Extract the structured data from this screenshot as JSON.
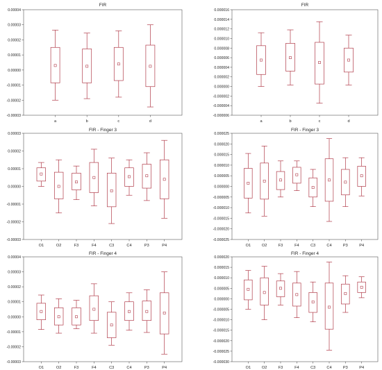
{
  "chart_data": [
    {
      "type": "box",
      "title": "FIR",
      "categories": [
        "a",
        "b",
        "c",
        "d"
      ],
      "ylim": [
        -3e-05,
        4e-05
      ],
      "yticks": [
        -3e-05,
        -2e-05,
        -1e-05,
        0.0,
        1e-05,
        2e-05,
        3e-05,
        4e-05
      ],
      "ytick_labels": [
        "-0.00003",
        "-0.00002",
        "-0.00001",
        "0.00000",
        "0.00001",
        "0.00002",
        "0.00003",
        "0.00004"
      ],
      "boxes": [
        {
          "median": 3e-06,
          "q1": -8.5e-06,
          "q3": 1.5e-05,
          "min": -2e-05,
          "max": 2.65e-05
        },
        {
          "median": 2.5e-06,
          "q1": -8.5e-06,
          "q3": 1.4e-05,
          "min": -1.9e-05,
          "max": 2.45e-05
        },
        {
          "median": 4e-06,
          "q1": -7e-06,
          "q3": 1.5e-05,
          "min": -1.8e-05,
          "max": 2.6e-05
        },
        {
          "median": 2.5e-06,
          "q1": -1.1e-05,
          "q3": 1.65e-05,
          "min": -2.45e-05,
          "max": 3e-05
        }
      ]
    },
    {
      "type": "box",
      "title": "FIR",
      "categories": [
        "a",
        "b",
        "c",
        "d"
      ],
      "ylim": [
        -6e-06,
        1.6e-05
      ],
      "yticks": [
        -6e-06,
        -4e-06,
        -2e-06,
        0.0,
        2e-06,
        4e-06,
        6e-06,
        8e-06,
        1e-05,
        1.2e-05,
        1.4e-05,
        1.6e-05
      ],
      "ytick_labels": [
        "-0.000006",
        "-0.000004",
        "-0.000002",
        "0.000000",
        "0.000002",
        "0.000004",
        "0.000006",
        "0.000008",
        "0.000010",
        "0.000012",
        "0.000014",
        "0.000016"
      ],
      "boxes": [
        {
          "median": 5.5e-06,
          "q1": 2.5e-06,
          "q3": 8.5e-06,
          "min": 0.0,
          "max": 1.12e-05
        },
        {
          "median": 6e-06,
          "q1": 3.2e-06,
          "q3": 9e-06,
          "min": 3e-07,
          "max": 1.18e-05
        },
        {
          "median": 5e-06,
          "q1": 5e-07,
          "q3": 9.2e-06,
          "min": -3.5e-06,
          "max": 1.35e-05
        },
        {
          "median": 5.5e-06,
          "q1": 3e-06,
          "q3": 8e-06,
          "min": 3e-07,
          "max": 1.07e-05
        }
      ]
    },
    {
      "type": "box",
      "title": "FIR - Finger 3",
      "categories": [
        "O1",
        "O2",
        "F3",
        "F4",
        "C3",
        "C4",
        "P3",
        "P4"
      ],
      "ylim": [
        -3e-05,
        3e-05
      ],
      "yticks": [
        -3e-05,
        -2e-05,
        -1e-05,
        0.0,
        1e-05,
        2e-05,
        3e-05
      ],
      "ytick_labels": [
        "-0.00003",
        "-0.00002",
        "-0.00001",
        "0.00000",
        "0.00001",
        "0.00002",
        "0.00003"
      ],
      "boxes": [
        {
          "median": 7e-06,
          "q1": 3e-06,
          "q3": 1.05e-05,
          "min": 0.0,
          "max": 1.35e-05
        },
        {
          "median": 0.0,
          "q1": -7e-06,
          "q3": 8e-06,
          "min": -1.5e-05,
          "max": 1.5e-05
        },
        {
          "median": 2.5e-06,
          "q1": -2e-06,
          "q3": 7.5e-06,
          "min": -7.5e-06,
          "max": 1.15e-05
        },
        {
          "median": 5e-06,
          "q1": -3.5e-06,
          "q3": 1.35e-05,
          "min": -1.1e-05,
          "max": 2.1e-05
        },
        {
          "median": -2.5e-06,
          "q1": -1.15e-05,
          "q3": 7.5e-06,
          "min": -2.1e-05,
          "max": 1.6e-05
        },
        {
          "median": 5.5e-06,
          "q1": 0.0,
          "q3": 1.05e-05,
          "min": -5e-06,
          "max": 1.5e-05
        },
        {
          "median": 6e-06,
          "q1": -1e-06,
          "q3": 1.25e-05,
          "min": -8e-06,
          "max": 1.9e-05
        },
        {
          "median": 4e-06,
          "q1": -7e-06,
          "q3": 1.5e-05,
          "min": -1.8e-05,
          "max": 2.6e-05
        }
      ]
    },
    {
      "type": "box",
      "title": "FIR - Finger 3",
      "categories": [
        "O1",
        "O2",
        "F3",
        "F4",
        "C3",
        "C4",
        "P3",
        "P4"
      ],
      "ylim": [
        -2.5e-05,
        2.5e-05
      ],
      "yticks": [
        -2.5e-05,
        -2e-05,
        -1.5e-05,
        -1e-05,
        -5e-06,
        0.0,
        5e-06,
        1e-05,
        1.5e-05,
        2e-05,
        2.5e-05
      ],
      "ytick_labels": [
        "-0.000025",
        "-0.000020",
        "-0.000015",
        "-0.000010",
        "-0.000005",
        "0.000000",
        "0.000005",
        "0.000010",
        "0.000015",
        "0.000020",
        "0.000025"
      ],
      "boxes": [
        {
          "median": 1.5e-06,
          "q1": -5.5e-06,
          "q3": 8.5e-06,
          "min": -1.25e-05,
          "max": 1.55e-05
        },
        {
          "median": 2.5e-06,
          "q1": -6e-06,
          "q3": 1.1e-05,
          "min": -1.4e-05,
          "max": 1.9e-05
        },
        {
          "median": 3e-06,
          "q1": -1.5e-06,
          "q3": 7e-06,
          "min": -5e-06,
          "max": 1.2e-05
        },
        {
          "median": 5.5e-06,
          "q1": 1.5e-06,
          "q3": 9e-06,
          "min": -2e-06,
          "max": 1.2e-05
        },
        {
          "median": -5e-07,
          "q1": -5e-06,
          "q3": 4e-06,
          "min": -9.5e-06,
          "max": 8e-06
        },
        {
          "median": 3e-06,
          "q1": -7e-06,
          "q3": 1.3e-05,
          "min": -1.65e-05,
          "max": 2.25e-05
        },
        {
          "median": 2e-06,
          "q1": -4e-06,
          "q3": 8e-06,
          "min": -9.5e-06,
          "max": 1.35e-05
        },
        {
          "median": 5e-06,
          "q1": 0.0,
          "q3": 9.5e-06,
          "min": -4.5e-06,
          "max": 1.35e-05
        }
      ]
    },
    {
      "type": "box",
      "title": "FIR - Finger 4",
      "categories": [
        "O1",
        "O2",
        "F3",
        "F4",
        "C3",
        "C4",
        "P3",
        "P4"
      ],
      "ylim": [
        -3e-05,
        4e-05
      ],
      "yticks": [
        -3e-05,
        -2e-05,
        -1e-05,
        0.0,
        1e-05,
        2e-05,
        3e-05,
        4e-05
      ],
      "ytick_labels": [
        "-0.00003",
        "-0.00002",
        "-0.00001",
        "0.00000",
        "0.00001",
        "0.00002",
        "0.00003",
        "0.00004"
      ],
      "boxes": [
        {
          "median": 3.5e-06,
          "q1": -2e-06,
          "q3": 9e-06,
          "min": -8.5e-06,
          "max": 1.45e-05
        },
        {
          "median": 0.0,
          "q1": -5.5e-06,
          "q3": 6e-06,
          "min": -1.1e-05,
          "max": 1.2e-05
        },
        {
          "median": 0.0,
          "q1": -5.5e-06,
          "q3": 6e-06,
          "min": -8e-06,
          "max": 1.1e-05
        },
        {
          "median": 5e-06,
          "q1": -2.5e-06,
          "q3": 1.4e-05,
          "min": -1.1e-05,
          "max": 2.2e-05
        },
        {
          "median": -5.5e-06,
          "q1": -1.4e-05,
          "q3": 3e-06,
          "min": -1.9e-05,
          "max": 1e-05
        },
        {
          "median": 3.5e-06,
          "q1": -2.5e-06,
          "q3": 1e-05,
          "min": -9e-06,
          "max": 1.6e-05
        },
        {
          "median": 3.5e-06,
          "q1": -2.5e-06,
          "q3": 1.05e-05,
          "min": -1.05e-05,
          "max": 1.8e-05
        },
        {
          "median": 2.5e-06,
          "q1": -1.15e-05,
          "q3": 1.6e-05,
          "min": -2.5e-05,
          "max": 3e-05
        }
      ]
    },
    {
      "type": "box",
      "title": "FIR - Finger 4",
      "categories": [
        "O1",
        "O2",
        "F3",
        "F4",
        "C3",
        "C4",
        "P3",
        "P4"
      ],
      "ylim": [
        -3e-05,
        2e-05
      ],
      "yticks": [
        -3e-05,
        -2.5e-05,
        -2e-05,
        -1.5e-05,
        -1e-05,
        -5e-06,
        0.0,
        5e-06,
        1e-05,
        1.5e-05,
        2e-05
      ],
      "ytick_labels": [
        "-0.000030",
        "-0.000025",
        "-0.000020",
        "-0.000015",
        "-0.000010",
        "-0.000005",
        "0.000000",
        "0.000005",
        "0.000010",
        "0.000015",
        "0.000020"
      ],
      "boxes": [
        {
          "median": 4.5e-06,
          "q1": -5e-07,
          "q3": 9e-06,
          "min": -5e-06,
          "max": 1.35e-05
        },
        {
          "median": 3e-06,
          "q1": -3e-06,
          "q3": 1e-05,
          "min": -1e-05,
          "max": 1.55e-05
        },
        {
          "median": 5e-06,
          "q1": 1e-06,
          "q3": 8.5e-06,
          "min": -3e-06,
          "max": 1.2e-05
        },
        {
          "median": 2e-06,
          "q1": -3.5e-06,
          "q3": 7.5e-06,
          "min": -9e-06,
          "max": 1.3e-05
        },
        {
          "median": -1.5e-06,
          "q1": -6.5e-06,
          "q3": 3e-06,
          "min": -1.1e-05,
          "max": 8e-06
        },
        {
          "median": -4e-06,
          "q1": -1.45e-05,
          "q3": 7.5e-06,
          "min": -2.45e-05,
          "max": 1.75e-05
        },
        {
          "median": 2.5e-06,
          "q1": -2.5e-06,
          "q3": 7e-06,
          "min": -6.5e-06,
          "max": 1.1e-05
        },
        {
          "median": 5.5e-06,
          "q1": 3e-06,
          "q3": 8e-06,
          "min": 5e-07,
          "max": 1.05e-05
        }
      ]
    }
  ],
  "colors": {
    "box": "#b03a48",
    "median_marker": "#b03a48",
    "axis": "#555555",
    "grid": "#dddddd"
  }
}
